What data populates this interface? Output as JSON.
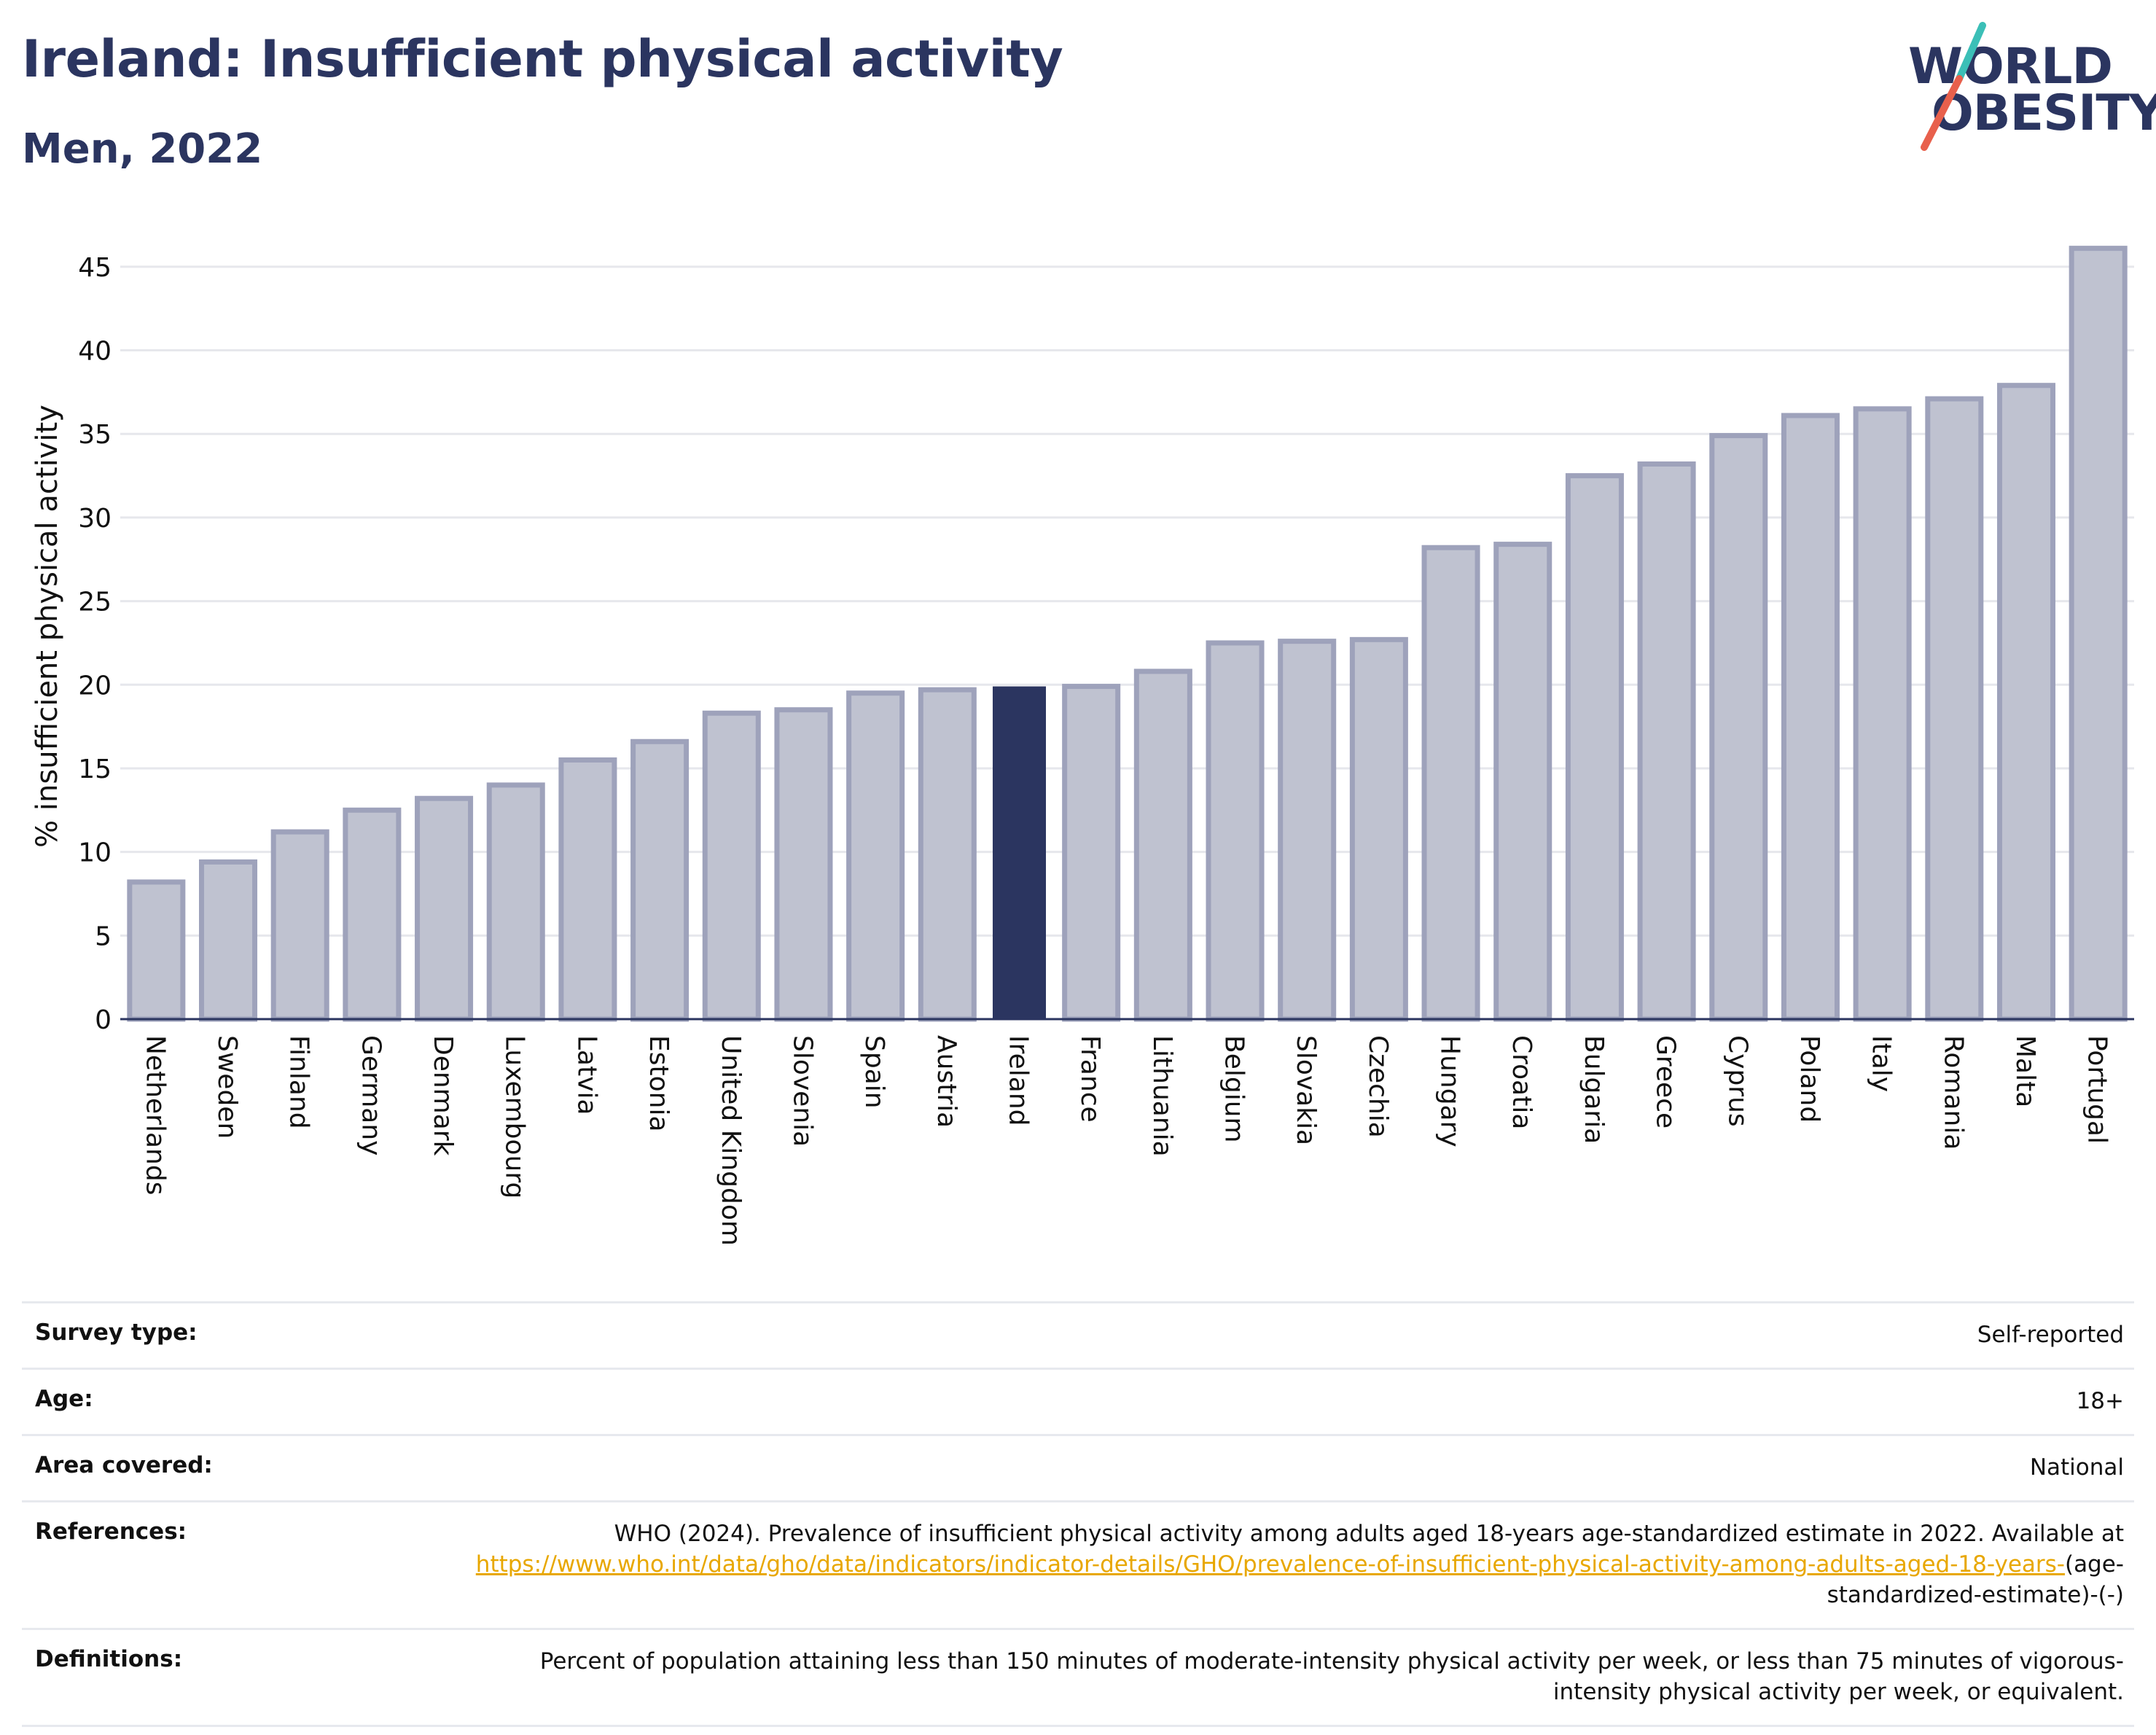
{
  "header": {
    "title": "Ireland: Insufficient physical activity",
    "subtitle": "Men, 2022"
  },
  "logo": {
    "line1": "WORLD",
    "line2": "OBESITY",
    "slash_colors": [
      "#3bbfb7",
      "#e8604c"
    ]
  },
  "colors": {
    "bar_fill": "#bfc2d0",
    "bar_stroke": "#9ea2bb",
    "highlight": "#2b3560",
    "text": "#2b3560",
    "link": "#e8a700"
  },
  "chart_data": {
    "type": "bar",
    "title": "Ireland: Insufficient physical activity",
    "subtitle": "Men, 2022",
    "xlabel": "",
    "ylabel": "% insufficient physical activity",
    "ylim": [
      0,
      47
    ],
    "yticks": [
      0,
      5,
      10,
      15,
      20,
      25,
      30,
      35,
      40,
      45
    ],
    "grid": true,
    "highlight": "Ireland",
    "categories": [
      "Netherlands",
      "Sweden",
      "Finland",
      "Germany",
      "Denmark",
      "Luxembourg",
      "Latvia",
      "Estonia",
      "United Kingdom",
      "Slovenia",
      "Spain",
      "Austria",
      "Ireland",
      "France",
      "Lithuania",
      "Belgium",
      "Slovakia",
      "Czechia",
      "Hungary",
      "Croatia",
      "Bulgaria",
      "Greece",
      "Cyprus",
      "Poland",
      "Italy",
      "Romania",
      "Malta",
      "Portugal"
    ],
    "values": [
      8.2,
      9.4,
      11.2,
      12.5,
      13.2,
      14.0,
      15.5,
      16.6,
      18.3,
      18.5,
      19.5,
      19.7,
      19.9,
      19.9,
      20.8,
      22.5,
      22.6,
      22.7,
      28.2,
      28.4,
      32.5,
      33.2,
      34.9,
      36.1,
      36.5,
      37.1,
      37.9,
      46.1
    ]
  },
  "info": {
    "survey_type": {
      "label": "Survey type:",
      "value": "Self-reported"
    },
    "age": {
      "label": "Age:",
      "value": "18+"
    },
    "area": {
      "label": "Area covered:",
      "value": "National"
    },
    "references": {
      "label": "References:",
      "text": "WHO (2024). Prevalence of insufficient physical activity among adults aged 18-years age-standardized estimate in 2022. Available at",
      "link": "https://www.who.int/data/gho/data/indicators/indicator-details/GHO/prevalence-of-insufficient-physical-activity-among-adults-aged-18-years-",
      "suffix": "(age-standardized-estimate)-(-)"
    },
    "definitions": {
      "label": "Definitions:",
      "value": "Percent of population attaining less than 150 minutes of moderate-intensity physical activity per week, or less than 75 minutes of vigorous-intensity physical activity per week, or equivalent."
    }
  }
}
